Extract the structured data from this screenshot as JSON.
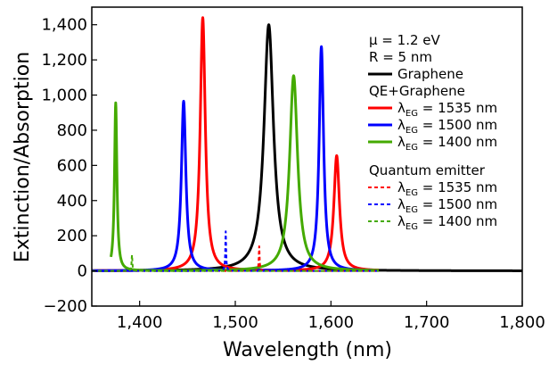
{
  "chart_data": {
    "type": "line",
    "xlabel": "Wavelength (nm)",
    "ylabel": "Extinction/Absorption",
    "xlim": [
      1350,
      1800
    ],
    "ylim": [
      -200,
      1500
    ],
    "xticks": [
      1400,
      1500,
      1600,
      1700,
      1800
    ],
    "xtick_labels": [
      "1,400",
      "1,500",
      "1,600",
      "1,700",
      "1,800"
    ],
    "yticks": [
      -200,
      0,
      200,
      400,
      600,
      800,
      1000,
      1200,
      1400
    ],
    "ytick_labels": [
      "−200",
      "0",
      "200",
      "400",
      "600",
      "800",
      "1,000",
      "1,200",
      "1,400"
    ],
    "grid": false,
    "legend_position": "top-right",
    "annotations": [
      "μ = 1.2 eV",
      "R = 5 nm"
    ],
    "legend_groups": [
      {
        "title": "",
        "entries": [
          {
            "label": "Graphene",
            "color": "#000000",
            "style": "solid"
          }
        ]
      },
      {
        "title": "QE+Graphene",
        "entries": [
          {
            "label_main": "λ",
            "label_sub": "EG",
            "label_rest": " = 1535 nm",
            "color": "#ff0000",
            "style": "solid"
          },
          {
            "label_main": "λ",
            "label_sub": "EG",
            "label_rest": " = 1500 nm",
            "color": "#0000ff",
            "style": "solid"
          },
          {
            "label_main": "λ",
            "label_sub": "EG",
            "label_rest": " = 1400 nm",
            "color": "#44aa00",
            "style": "solid"
          }
        ]
      },
      {
        "title": "Quantum emitter",
        "entries": [
          {
            "label_main": "λ",
            "label_sub": "EG",
            "label_rest": " = 1535 nm",
            "color": "#ff0000",
            "style": "dashed"
          },
          {
            "label_main": "λ",
            "label_sub": "EG",
            "label_rest": " = 1500 nm",
            "color": "#0000ff",
            "style": "dashed"
          },
          {
            "label_main": "λ",
            "label_sub": "EG",
            "label_rest": " = 1400 nm",
            "color": "#44aa00",
            "style": "dashed"
          }
        ]
      }
    ],
    "series": [
      {
        "color": "#000000",
        "style": "solid",
        "peaks": [
          {
            "center": 1535,
            "height": 1400,
            "width": 6
          }
        ],
        "x_range": [
          1350,
          1800
        ]
      },
      {
        "color": "#ff0000",
        "style": "solid",
        "peaks": [
          {
            "center": 1466,
            "height": 1440,
            "width": 3.2
          },
          {
            "center": 1606,
            "height": 655,
            "width": 3.5
          }
        ],
        "x_range": [
          1350,
          1650
        ]
      },
      {
        "color": "#0000ff",
        "style": "solid",
        "peaks": [
          {
            "center": 1446,
            "height": 965,
            "width": 2.8
          },
          {
            "center": 1590,
            "height": 1275,
            "width": 2.8
          }
        ],
        "x_range": [
          1350,
          1650
        ]
      },
      {
        "color": "#44aa00",
        "style": "solid",
        "peaks": [
          {
            "center": 1375,
            "height": 955,
            "width": 1.5
          },
          {
            "center": 1561,
            "height": 1110,
            "width": 5
          }
        ],
        "x_range": [
          1370,
          1650
        ]
      },
      {
        "color": "#ff0000",
        "style": "dashed",
        "peaks": [
          {
            "center": 1525,
            "height": 140,
            "width": 0.5
          }
        ],
        "x_range": [
          1350,
          1650
        ]
      },
      {
        "color": "#0000ff",
        "style": "dashed",
        "peaks": [
          {
            "center": 1490,
            "height": 225,
            "width": 0.5
          }
        ],
        "x_range": [
          1350,
          1650
        ]
      },
      {
        "color": "#44aa00",
        "style": "dashed",
        "peaks": [
          {
            "center": 1392,
            "height": 90,
            "width": 0.5
          }
        ],
        "x_range": [
          1350,
          1650
        ]
      }
    ]
  }
}
